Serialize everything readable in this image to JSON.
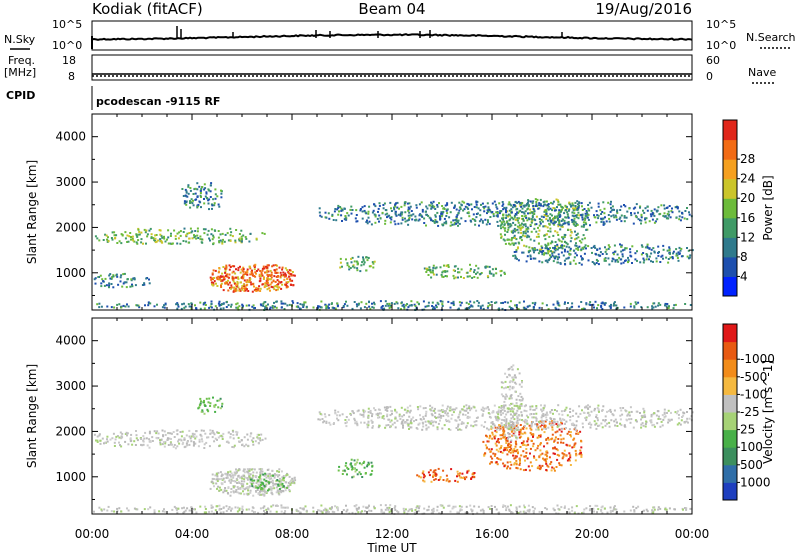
{
  "header": {
    "station": "Kodiak (fitACF)",
    "beam": "Beam 04",
    "date": "19/Aug/2016"
  },
  "info_panels": {
    "noise_left_label": "N.Sky",
    "noise_left_ticks": [
      "10^5",
      "10^0"
    ],
    "noise_right_label": "N.Search",
    "noise_right_ticks": [
      "10^5",
      "10^0"
    ],
    "freq_label_1": "Freq.",
    "freq_label_2": "[MHz]",
    "freq_ticks": [
      "18",
      "8"
    ],
    "nave_label": "Nave",
    "nave_ticks": [
      "60",
      "0"
    ],
    "cpid_label": "CPID",
    "cpid_text": "pcodescan -9115 RF"
  },
  "chart_data": [
    {
      "type": "heatmap",
      "name": "power",
      "ylabel": "Slant Range [km]",
      "xlabel": "Time UT",
      "x_ticks": [
        "00:00",
        "04:00",
        "08:00",
        "12:00",
        "16:00",
        "20:00",
        "00:00"
      ],
      "y_ticks": [
        1000,
        2000,
        3000,
        4000
      ],
      "ylim": [
        180,
        4500
      ],
      "colorbar": {
        "label": "Power [dB]",
        "ticks": [
          "4",
          "8",
          "12",
          "16",
          "20",
          "24",
          "28"
        ],
        "colors": [
          "#0022ff",
          "#1d4fae",
          "#2f7a8c",
          "#3f9a66",
          "#6cbb3a",
          "#cbc52a",
          "#f5a020",
          "#f26b15",
          "#e0261a"
        ]
      },
      "regions": [
        {
          "t": [
            4.7,
            8.1
          ],
          "r": [
            600,
            1200
          ],
          "level": "high"
        },
        {
          "t": [
            0.0,
            6.9
          ],
          "r": [
            1650,
            2000
          ],
          "level": "mid"
        },
        {
          "t": [
            9.8,
            11.3
          ],
          "r": [
            1050,
            1380
          ],
          "level": "mid"
        },
        {
          "t": [
            12.9,
            16.5
          ],
          "r": [
            900,
            1200
          ],
          "level": "mid"
        },
        {
          "t": [
            16.3,
            19.8
          ],
          "r": [
            1450,
            2650
          ],
          "level": "mid"
        },
        {
          "t": [
            9.0,
            24.0
          ],
          "r": [
            2050,
            2600
          ],
          "level": "low"
        },
        {
          "t": [
            0.0,
            2.3
          ],
          "r": [
            700,
            1000
          ],
          "level": "low"
        },
        {
          "t": [
            16.8,
            24.0
          ],
          "r": [
            1200,
            1650
          ],
          "level": "low"
        },
        {
          "t": [
            3.5,
            5.2
          ],
          "r": [
            2400,
            3000
          ],
          "level": "low"
        },
        {
          "t": [
            0.0,
            24.0
          ],
          "r": [
            200,
            400
          ],
          "level": "low"
        }
      ]
    },
    {
      "type": "heatmap",
      "name": "velocity",
      "ylabel": "Slant Range [km]",
      "xlabel": "Time UT",
      "x_ticks": [
        "00:00",
        "04:00",
        "08:00",
        "12:00",
        "16:00",
        "20:00",
        "00:00"
      ],
      "y_ticks": [
        1000,
        2000,
        3000,
        4000
      ],
      "ylim": [
        180,
        4500
      ],
      "colorbar": {
        "label": "Velocity [m s^-1]",
        "ticks": [
          "1000",
          "500",
          "100",
          "25",
          "-25",
          "-100",
          "-500",
          "-1000"
        ],
        "colors": [
          "#1e3fbf",
          "#2f6ea8",
          "#3c8f5e",
          "#48b048",
          "#a6d276",
          "#c0c0c0",
          "#f5b940",
          "#f28c1a",
          "#e85a12",
          "#e01818"
        ]
      },
      "regions": [
        {
          "t": [
            4.7,
            8.1
          ],
          "r": [
            600,
            1200
          ],
          "level": "gray"
        },
        {
          "t": [
            6.3,
            7.8
          ],
          "r": [
            700,
            1100
          ],
          "level": "green"
        },
        {
          "t": [
            0.0,
            6.9
          ],
          "r": [
            1650,
            2050
          ],
          "level": "gray"
        },
        {
          "t": [
            9.8,
            11.3
          ],
          "r": [
            1000,
            1400
          ],
          "level": "green"
        },
        {
          "t": [
            12.9,
            15.3
          ],
          "r": [
            900,
            1200
          ],
          "level": "orange"
        },
        {
          "t": [
            15.6,
            19.6
          ],
          "r": [
            1150,
            2250
          ],
          "level": "orange"
        },
        {
          "t": [
            16.3,
            17.2
          ],
          "r": [
            1800,
            3500
          ],
          "level": "gray"
        },
        {
          "t": [
            9.0,
            24.0
          ],
          "r": [
            2050,
            2600
          ],
          "level": "gray"
        },
        {
          "t": [
            4.2,
            5.2
          ],
          "r": [
            2400,
            2800
          ],
          "level": "green"
        },
        {
          "t": [
            0.0,
            24.0
          ],
          "r": [
            200,
            400
          ],
          "level": "gray"
        }
      ]
    }
  ]
}
